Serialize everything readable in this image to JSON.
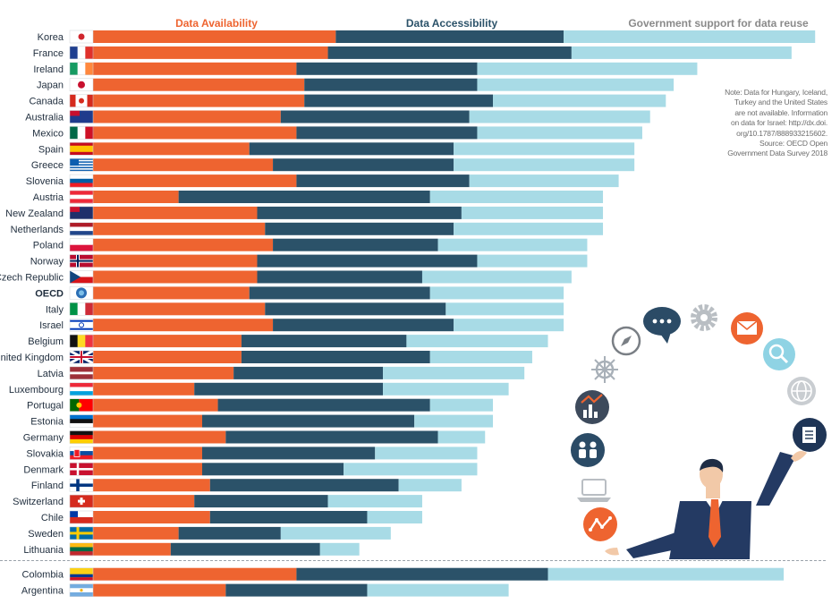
{
  "chart_data": {
    "type": "bar",
    "stacked": true,
    "orientation": "horizontal",
    "series": [
      {
        "name": "Data Availability",
        "color": "#ee6430"
      },
      {
        "name": "Data Accessibility",
        "color": "#2b5269"
      },
      {
        "name": "Government support for data reuse",
        "color": "#a8dbe6"
      }
    ],
    "categories": [
      "Korea",
      "France",
      "Ireland",
      "Japan",
      "Canada",
      "Australia",
      "Mexico",
      "Spain",
      "Greece",
      "Slovenia",
      "Austria",
      "New Zealand",
      "Netherlands",
      "Poland",
      "Norway",
      "Czech Republic",
      "OECD",
      "Italy",
      "Israel",
      "Belgium",
      "United Kingdom",
      "Latvia",
      "Luxembourg",
      "Portugal",
      "Estonia",
      "Germany",
      "Slovakia",
      "Denmark",
      "Finland",
      "Switzerland",
      "Chile",
      "Sweden",
      "Lithuania",
      "Colombia",
      "Argentina"
    ],
    "highlight": [
      "OECD"
    ],
    "separated_after": "Lithuania",
    "values": [
      [
        0.31,
        0.29,
        0.32
      ],
      [
        0.3,
        0.31,
        0.28
      ],
      [
        0.26,
        0.23,
        0.28
      ],
      [
        0.27,
        0.22,
        0.25
      ],
      [
        0.27,
        0.24,
        0.22
      ],
      [
        0.24,
        0.24,
        0.23
      ],
      [
        0.26,
        0.23,
        0.21
      ],
      [
        0.2,
        0.26,
        0.23
      ],
      [
        0.23,
        0.23,
        0.23
      ],
      [
        0.26,
        0.22,
        0.19
      ],
      [
        0.11,
        0.32,
        0.22
      ],
      [
        0.21,
        0.26,
        0.18
      ],
      [
        0.22,
        0.24,
        0.19
      ],
      [
        0.23,
        0.21,
        0.19
      ],
      [
        0.21,
        0.28,
        0.14
      ],
      [
        0.21,
        0.21,
        0.19
      ],
      [
        0.2,
        0.23,
        0.17
      ],
      [
        0.22,
        0.23,
        0.15
      ],
      [
        0.23,
        0.23,
        0.14
      ],
      [
        0.19,
        0.21,
        0.18
      ],
      [
        0.19,
        0.24,
        0.13
      ],
      [
        0.18,
        0.19,
        0.18
      ],
      [
        0.13,
        0.24,
        0.16
      ],
      [
        0.16,
        0.27,
        0.08
      ],
      [
        0.14,
        0.27,
        0.1
      ],
      [
        0.17,
        0.27,
        0.06
      ],
      [
        0.14,
        0.22,
        0.13
      ],
      [
        0.14,
        0.18,
        0.17
      ],
      [
        0.15,
        0.24,
        0.08
      ],
      [
        0.13,
        0.17,
        0.12
      ],
      [
        0.15,
        0.2,
        0.07
      ],
      [
        0.11,
        0.13,
        0.14
      ],
      [
        0.1,
        0.19,
        0.05
      ],
      [
        0.26,
        0.32,
        0.3
      ],
      [
        0.17,
        0.18,
        0.18
      ]
    ],
    "xlim": [
      0,
      0.93
    ]
  },
  "legend_labels": [
    "Data Availability",
    "Data Accessibility",
    "Government support for data reuse"
  ],
  "note": "Note: Data for Hungary, Iceland,\nTurkey and the United States\nare not available. Information\non data for Israel: http://dx.doi.\norg/10.1787/888933215602.\nSource: OECD Open\nGovernment Data Survey 2018",
  "illustration_icons": [
    "chat-bubble-icon",
    "gear-icon",
    "envelope-icon",
    "compass-icon",
    "magnifier-icon",
    "ship-wheel-icon",
    "globe-icon",
    "growth-chart-icon",
    "document-icon",
    "people-icon",
    "laptop-icon",
    "line-chart-icon"
  ]
}
